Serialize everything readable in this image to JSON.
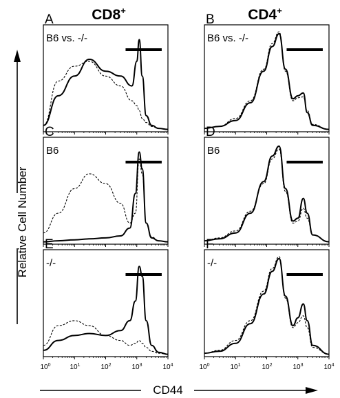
{
  "figure": {
    "columns": [
      {
        "title": "CD8",
        "superscript": "+"
      },
      {
        "title": "CD4",
        "superscript": "+"
      }
    ],
    "y_axis_title": "Relative Cell Number",
    "x_axis_title": "CD44",
    "x_tick_base": "10",
    "x_tick_exponents": [
      "0",
      "1",
      "2",
      "3",
      "4"
    ],
    "panels": [
      {
        "letter": "A",
        "label": "B6 vs. -/-"
      },
      {
        "letter": "B",
        "label": "B6 vs. -/-"
      },
      {
        "letter": "C",
        "label": "B6"
      },
      {
        "letter": "D",
        "label": "B6"
      },
      {
        "letter": "E",
        "label": "-/-"
      },
      {
        "letter": "F",
        "label": "-/-"
      }
    ]
  },
  "chart_data": [
    {
      "type": "line",
      "panel": "A",
      "x_scale": "log",
      "xlim": [
        1,
        10000
      ],
      "x": [
        1,
        3,
        10,
        30,
        100,
        300,
        700,
        1000,
        1200,
        1500,
        2000,
        3000,
        5000,
        10000
      ],
      "series": [
        {
          "style": "solid",
          "values": [
            0.05,
            0.35,
            0.55,
            0.72,
            0.6,
            0.55,
            0.45,
            0.7,
            0.92,
            0.55,
            0.15,
            0.05,
            0.02,
            0.01
          ]
        },
        {
          "style": "dashed",
          "values": [
            0.05,
            0.5,
            0.65,
            0.7,
            0.55,
            0.45,
            0.3,
            0.25,
            0.2,
            0.12,
            0.08,
            0.04,
            0.02,
            0.01
          ]
        }
      ]
    },
    {
      "type": "line",
      "panel": "B",
      "x_scale": "log",
      "xlim": [
        1,
        10000
      ],
      "x": [
        1,
        3,
        10,
        30,
        80,
        150,
        250,
        400,
        700,
        1000,
        1500,
        2000,
        3000,
        10000
      ],
      "series": [
        {
          "style": "solid",
          "values": [
            0.02,
            0.04,
            0.1,
            0.28,
            0.6,
            0.85,
            0.98,
            0.62,
            0.32,
            0.35,
            0.38,
            0.18,
            0.05,
            0.01
          ]
        },
        {
          "style": "dashed",
          "values": [
            0.02,
            0.04,
            0.12,
            0.3,
            0.62,
            0.88,
            1.0,
            0.6,
            0.3,
            0.33,
            0.34,
            0.2,
            0.06,
            0.01
          ]
        }
      ]
    },
    {
      "type": "line",
      "panel": "C",
      "x_scale": "log",
      "xlim": [
        1,
        10000
      ],
      "x": [
        1,
        3,
        10,
        30,
        100,
        300,
        600,
        900,
        1200,
        1500,
        2000,
        3000,
        5000,
        10000
      ],
      "series": [
        {
          "style": "solid",
          "values": [
            0.01,
            0.02,
            0.03,
            0.04,
            0.05,
            0.07,
            0.15,
            0.5,
            0.92,
            0.75,
            0.2,
            0.05,
            0.02,
            0.01
          ]
        },
        {
          "style": "dashed",
          "values": [
            0.1,
            0.3,
            0.55,
            0.7,
            0.6,
            0.4,
            0.2,
            0.3,
            0.85,
            0.7,
            0.2,
            0.06,
            0.02,
            0.01
          ]
        }
      ]
    },
    {
      "type": "line",
      "panel": "D",
      "x_scale": "log",
      "xlim": [
        1,
        10000
      ],
      "x": [
        1,
        3,
        10,
        30,
        80,
        150,
        250,
        400,
        700,
        1000,
        1500,
        2000,
        3000,
        10000
      ],
      "series": [
        {
          "style": "solid",
          "values": [
            0.02,
            0.04,
            0.1,
            0.3,
            0.62,
            0.88,
            0.98,
            0.55,
            0.22,
            0.25,
            0.45,
            0.3,
            0.08,
            0.01
          ]
        },
        {
          "style": "dashed",
          "values": [
            0.02,
            0.05,
            0.12,
            0.32,
            0.6,
            0.85,
            0.95,
            0.52,
            0.2,
            0.22,
            0.35,
            0.25,
            0.08,
            0.01
          ]
        }
      ]
    },
    {
      "type": "line",
      "panel": "E",
      "x_scale": "log",
      "xlim": [
        1,
        10000
      ],
      "x": [
        1,
        3,
        10,
        30,
        100,
        300,
        600,
        900,
        1200,
        1500,
        2000,
        3000,
        5000,
        10000
      ],
      "series": [
        {
          "style": "solid",
          "values": [
            0.05,
            0.15,
            0.2,
            0.22,
            0.2,
            0.25,
            0.35,
            0.55,
            0.9,
            0.8,
            0.35,
            0.1,
            0.03,
            0.01
          ]
        },
        {
          "style": "dashed",
          "values": [
            0.1,
            0.3,
            0.35,
            0.3,
            0.2,
            0.15,
            0.1,
            0.12,
            0.15,
            0.12,
            0.08,
            0.04,
            0.02,
            0.01
          ]
        }
      ]
    },
    {
      "type": "line",
      "panel": "F",
      "x_scale": "log",
      "xlim": [
        1,
        10000
      ],
      "x": [
        1,
        3,
        10,
        30,
        80,
        150,
        250,
        400,
        700,
        1000,
        1500,
        2000,
        3000,
        10000
      ],
      "series": [
        {
          "style": "solid",
          "values": [
            0.02,
            0.04,
            0.12,
            0.32,
            0.62,
            0.85,
            0.98,
            0.6,
            0.3,
            0.38,
            0.52,
            0.35,
            0.1,
            0.01
          ]
        },
        {
          "style": "dashed",
          "values": [
            0.02,
            0.05,
            0.15,
            0.35,
            0.65,
            0.88,
            1.0,
            0.58,
            0.28,
            0.33,
            0.4,
            0.28,
            0.08,
            0.01
          ]
        }
      ]
    }
  ]
}
